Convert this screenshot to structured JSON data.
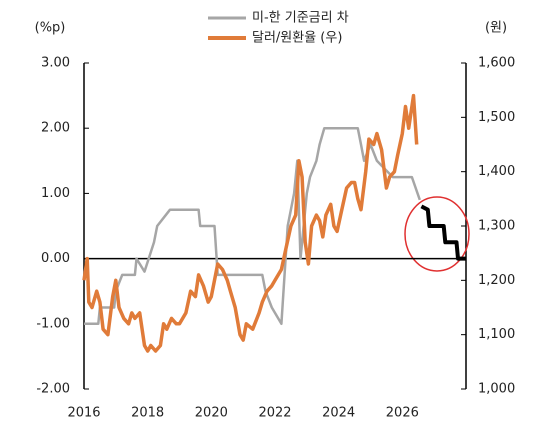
{
  "chart_data": {
    "type": "line",
    "y_label": "(%p)",
    "y2_label": "(원)",
    "xlim": [
      2016,
      2028
    ],
    "xticks": [
      2016,
      2018,
      2020,
      2022,
      2024,
      2026
    ],
    "ylim": [
      -2,
      3
    ],
    "yticks": [
      {
        "value": 3,
        "label": "3.00"
      },
      {
        "value": 2,
        "label": "2.00"
      },
      {
        "value": 1,
        "label": "1.00"
      },
      {
        "value": 0,
        "label": "0.00"
      },
      {
        "value": -1,
        "label": "-1.00"
      },
      {
        "value": -2,
        "label": "-2.00"
      }
    ],
    "y2lim": [
      1000,
      1600
    ],
    "y2ticks": [
      {
        "value": 1600,
        "label": "1,600"
      },
      {
        "value": 1500,
        "label": "1,500"
      },
      {
        "value": 1400,
        "label": "1,400"
      },
      {
        "value": 1300,
        "label": "1,300"
      },
      {
        "value": 1200,
        "label": "1,200"
      },
      {
        "value": 1100,
        "label": "1,100"
      },
      {
        "value": 1000,
        "label": "1,000"
      }
    ],
    "series": [
      {
        "name": "미-한 기준금리 차",
        "color": "#a6a6a6",
        "x": [
          2016.0,
          2016.45,
          2016.5,
          2016.95,
          2017.0,
          2017.2,
          2017.6,
          2017.65,
          2017.9,
          2018.2,
          2018.3,
          2018.7,
          2019.6,
          2019.65,
          2020.1,
          2020.2,
          2021.6,
          2021.7,
          2021.9,
          2022.2,
          2022.4,
          2022.6,
          2022.7,
          2022.8,
          2023.0,
          2023.1,
          2023.3,
          2023.4,
          2023.55,
          2024.6,
          2024.7,
          2024.8,
          2025.0,
          2025.2,
          2025.7,
          2026.3,
          2026.55
        ],
        "values": [
          -1.0,
          -1.0,
          -0.75,
          -0.75,
          -0.5,
          -0.25,
          -0.25,
          0.0,
          -0.2,
          0.25,
          0.5,
          0.75,
          0.75,
          0.5,
          0.5,
          -0.25,
          -0.25,
          -0.5,
          -0.75,
          -1.0,
          0.5,
          1.0,
          1.5,
          0.0,
          1.0,
          1.25,
          1.5,
          1.75,
          2.0,
          2.0,
          1.75,
          1.5,
          1.75,
          1.5,
          1.25,
          1.25,
          0.9
        ]
      },
      {
        "color": "#000000",
        "x": [
          2026.6,
          2026.8,
          2026.85,
          2027.3,
          2027.35,
          2027.7,
          2027.75,
          2028.0
        ],
        "values": [
          0.8,
          0.75,
          0.5,
          0.5,
          0.25,
          0.25,
          0.0,
          0.0
        ]
      },
      {
        "name": "달러/원환율 (우)",
        "color": "#e07b39",
        "axis": "y2",
        "x": [
          2016.0,
          2016.1,
          2016.15,
          2016.25,
          2016.4,
          2016.5,
          2016.6,
          2016.75,
          2016.9,
          2017.0,
          2017.1,
          2017.25,
          2017.4,
          2017.5,
          2017.6,
          2017.75,
          2017.9,
          2018.0,
          2018.1,
          2018.25,
          2018.4,
          2018.5,
          2018.6,
          2018.75,
          2018.9,
          2019.0,
          2019.2,
          2019.35,
          2019.5,
          2019.6,
          2019.75,
          2019.9,
          2020.0,
          2020.2,
          2020.35,
          2020.5,
          2020.6,
          2020.75,
          2020.9,
          2021.0,
          2021.1,
          2021.3,
          2021.5,
          2021.6,
          2021.75,
          2021.9,
          2022.0,
          2022.2,
          2022.35,
          2022.5,
          2022.65,
          2022.75,
          2022.85,
          2022.95,
          2023.05,
          2023.15,
          2023.3,
          2023.4,
          2023.5,
          2023.6,
          2023.75,
          2023.85,
          2023.95,
          2024.1,
          2024.25,
          2024.4,
          2024.5,
          2024.6,
          2024.7,
          2024.85,
          2024.95,
          2025.1,
          2025.2,
          2025.35,
          2025.5,
          2025.6,
          2025.75,
          2025.85,
          2026.0,
          2026.1,
          2026.2,
          2026.35,
          2026.45
        ],
        "values": [
          1200,
          1240,
          1160,
          1150,
          1180,
          1160,
          1110,
          1100,
          1170,
          1200,
          1150,
          1130,
          1120,
          1140,
          1130,
          1140,
          1080,
          1070,
          1080,
          1070,
          1080,
          1120,
          1110,
          1130,
          1120,
          1120,
          1140,
          1180,
          1170,
          1210,
          1190,
          1160,
          1170,
          1230,
          1220,
          1200,
          1180,
          1150,
          1100,
          1090,
          1120,
          1110,
          1140,
          1160,
          1180,
          1190,
          1200,
          1220,
          1260,
          1300,
          1320,
          1420,
          1390,
          1270,
          1230,
          1300,
          1320,
          1310,
          1280,
          1320,
          1340,
          1300,
          1290,
          1330,
          1370,
          1380,
          1380,
          1350,
          1330,
          1400,
          1460,
          1450,
          1470,
          1440,
          1370,
          1390,
          1400,
          1430,
          1470,
          1520,
          1480,
          1540,
          1450
        ]
      }
    ]
  }
}
